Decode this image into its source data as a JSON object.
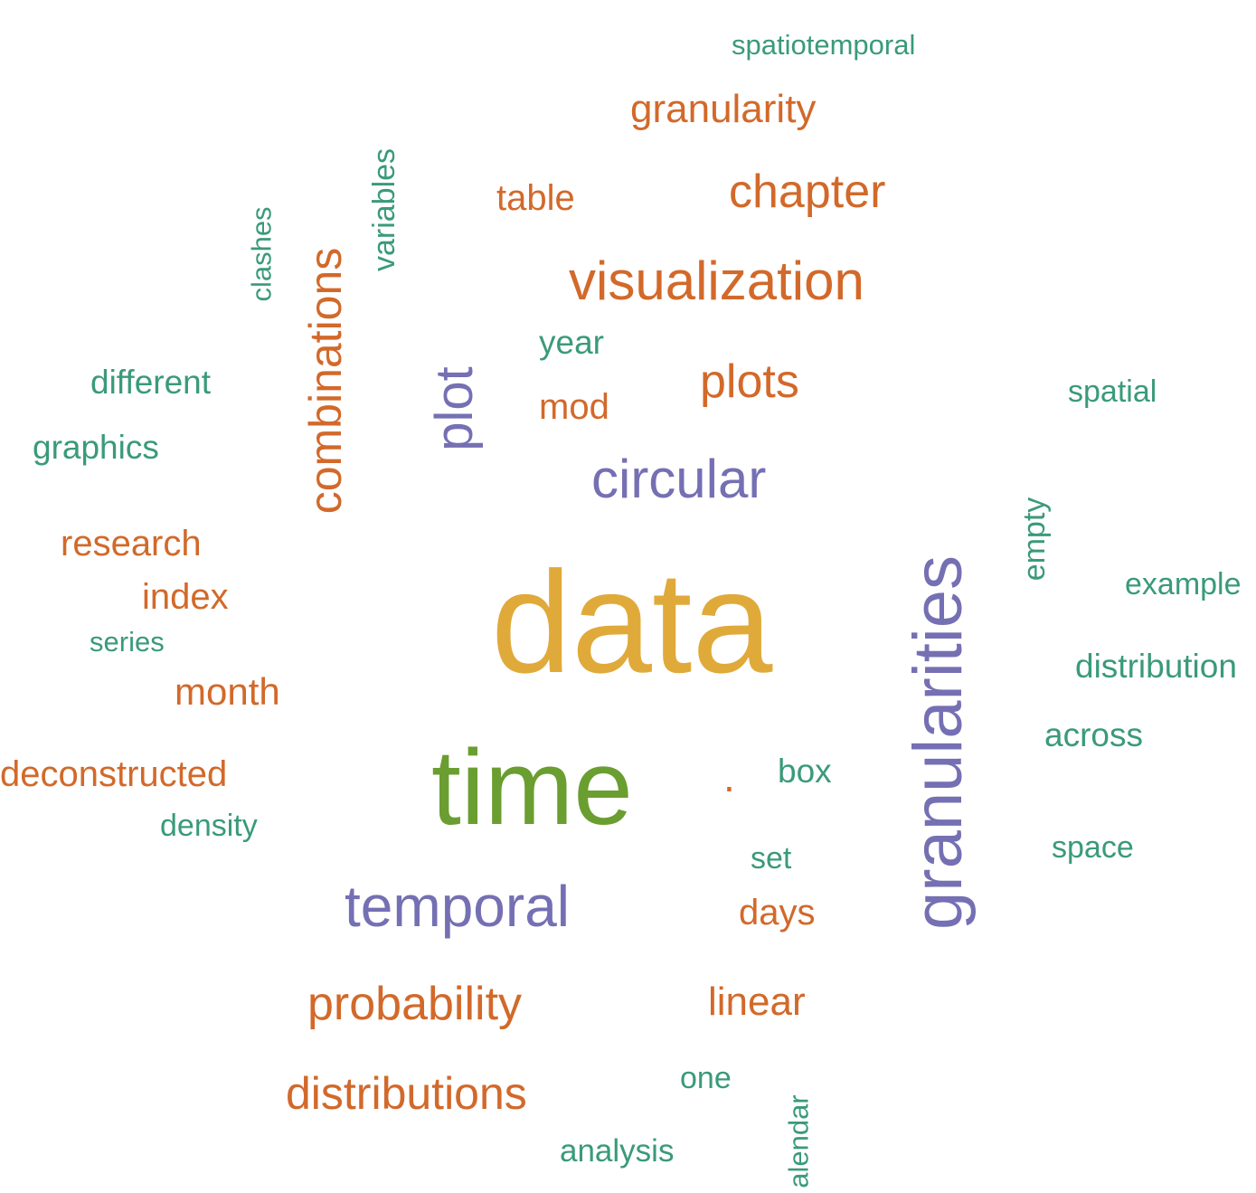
{
  "colors": {
    "teal": "#3a9a7a",
    "orange": "#d2692a",
    "purple": "#7570b3",
    "gold": "#e0aa3a",
    "green": "#6a9e30"
  },
  "words": [
    {
      "id": "spatiotemporal",
      "text": "spatiotemporal",
      "color": "teal"
    },
    {
      "id": "granularity",
      "text": "granularity",
      "color": "orange"
    },
    {
      "id": "variables",
      "text": "variables",
      "color": "teal",
      "rotated": true
    },
    {
      "id": "table",
      "text": "table",
      "color": "orange"
    },
    {
      "id": "chapter",
      "text": "chapter",
      "color": "orange"
    },
    {
      "id": "clashes",
      "text": "clashes",
      "color": "teal",
      "rotated": true
    },
    {
      "id": "combinations",
      "text": "combinations",
      "color": "orange",
      "rotated": true
    },
    {
      "id": "visualization",
      "text": "visualization",
      "color": "orange"
    },
    {
      "id": "year",
      "text": "year",
      "color": "teal"
    },
    {
      "id": "different",
      "text": "different",
      "color": "teal"
    },
    {
      "id": "plot",
      "text": "plot",
      "color": "purple",
      "rotated": true
    },
    {
      "id": "plots",
      "text": "plots",
      "color": "orange"
    },
    {
      "id": "spatial",
      "text": "spatial",
      "color": "teal"
    },
    {
      "id": "mod",
      "text": "mod",
      "color": "orange"
    },
    {
      "id": "graphics",
      "text": "graphics",
      "color": "teal"
    },
    {
      "id": "circular",
      "text": "circular",
      "color": "purple"
    },
    {
      "id": "empty",
      "text": "empty",
      "color": "teal",
      "rotated": true
    },
    {
      "id": "research",
      "text": "research",
      "color": "orange"
    },
    {
      "id": "granularities",
      "text": "granularities",
      "color": "purple",
      "rotated": true
    },
    {
      "id": "example",
      "text": "example",
      "color": "teal"
    },
    {
      "id": "index",
      "text": "index",
      "color": "orange"
    },
    {
      "id": "data",
      "text": "data",
      "color": "gold"
    },
    {
      "id": "series",
      "text": "series",
      "color": "teal"
    },
    {
      "id": "distribution",
      "text": "distribution",
      "color": "teal"
    },
    {
      "id": "month",
      "text": "month",
      "color": "orange"
    },
    {
      "id": "across",
      "text": "across",
      "color": "teal"
    },
    {
      "id": "deconstructed",
      "text": "deconstructed",
      "color": "orange"
    },
    {
      "id": "time",
      "text": "time",
      "color": "green"
    },
    {
      "id": "dot",
      "text": ".",
      "color": "orange"
    },
    {
      "id": "box",
      "text": "box",
      "color": "teal"
    },
    {
      "id": "density",
      "text": "density",
      "color": "teal"
    },
    {
      "id": "space",
      "text": "space",
      "color": "teal"
    },
    {
      "id": "set",
      "text": "set",
      "color": "teal"
    },
    {
      "id": "temporal",
      "text": "temporal",
      "color": "purple"
    },
    {
      "id": "days",
      "text": "days",
      "color": "orange"
    },
    {
      "id": "probability",
      "text": "probability",
      "color": "orange"
    },
    {
      "id": "linear",
      "text": "linear",
      "color": "orange"
    },
    {
      "id": "one",
      "text": "one",
      "color": "teal"
    },
    {
      "id": "distributions",
      "text": "distributions",
      "color": "orange"
    },
    {
      "id": "calendar",
      "text": "alendar",
      "color": "teal",
      "rotated": true
    },
    {
      "id": "analysis",
      "text": "analysis",
      "color": "teal"
    }
  ]
}
